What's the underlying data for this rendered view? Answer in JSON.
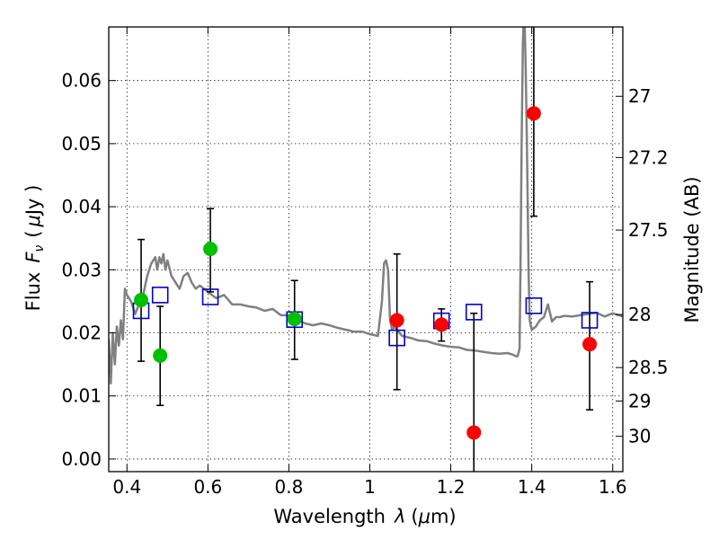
{
  "chart_data": {
    "type": "scatter",
    "title": "",
    "xlabel_prefix": "Wavelength",
    "xlabel_symbol": "λ",
    "xlabel_units_open": "(",
    "xlabel_units_mu": "μ",
    "xlabel_units_rest": "m)",
    "ylabel_prefix": "Flux",
    "ylabel_symbol": "F",
    "ylabel_subscript": "ν",
    "ylabel_units_open": "(",
    "ylabel_units_mu": "μ",
    "ylabel_units_rest": "Jy )",
    "y2label": "Magnitude (AB)",
    "xlim": [
      0.355,
      1.625
    ],
    "ylim": [
      -0.002,
      0.0685
    ],
    "xticks": [
      0.4,
      0.6,
      0.8,
      1.0,
      1.2,
      1.4,
      1.6
    ],
    "xtick_labels": [
      "0.4",
      "0.6",
      "0.8",
      "1",
      "1.2",
      "1.4",
      "1.6"
    ],
    "yticks": [
      0.0,
      0.01,
      0.02,
      0.03,
      0.04,
      0.05,
      0.06
    ],
    "ytick_labels": [
      "0.00",
      "0.01",
      "0.02",
      "0.03",
      "0.04",
      "0.05",
      "0.06"
    ],
    "y2ticks": [
      {
        "label": "27",
        "flux": 0.0575
      },
      {
        "label": "27.2",
        "flux": 0.0478
      },
      {
        "label": "27.5",
        "flux": 0.0363
      },
      {
        "label": "28",
        "flux": 0.0229
      },
      {
        "label": "28.5",
        "flux": 0.0145
      },
      {
        "label": "29",
        "flux": 0.0092
      },
      {
        "label": "30",
        "flux": 0.0036
      }
    ],
    "grid": true,
    "colors": {
      "green": "#00c000",
      "red": "#ff0000",
      "blue": "#0000cc",
      "template": "#808080",
      "errorbar": "#000000"
    },
    "series": [
      {
        "name": "green points",
        "marker": "circle",
        "color": "#00c000",
        "points": [
          {
            "x": 0.435,
            "y": 0.0252,
            "ylo": 0.0155,
            "yhi": 0.0348
          },
          {
            "x": 0.482,
            "y": 0.0164,
            "ylo": 0.0085,
            "yhi": 0.0242
          },
          {
            "x": 0.606,
            "y": 0.0333,
            "ylo": 0.0265,
            "yhi": 0.0397
          },
          {
            "x": 0.814,
            "y": 0.0222,
            "ylo": 0.0158,
            "yhi": 0.0283
          }
        ]
      },
      {
        "name": "red points",
        "marker": "circle",
        "color": "#ff0000",
        "points": [
          {
            "x": 1.067,
            "y": 0.022,
            "ylo": 0.011,
            "yhi": 0.0325
          },
          {
            "x": 1.177,
            "y": 0.0213,
            "ylo": 0.0187,
            "yhi": 0.0238
          },
          {
            "x": 1.257,
            "y": 0.0042,
            "ylo": -0.0025,
            "yhi": 0.0231
          },
          {
            "x": 1.405,
            "y": 0.0548,
            "ylo": 0.0385,
            "yhi": 0.071
          },
          {
            "x": 1.543,
            "y": 0.0182,
            "ylo": 0.0078,
            "yhi": 0.0281
          }
        ]
      },
      {
        "name": "model photometry",
        "marker": "open-square",
        "color": "#0000cc",
        "points": [
          {
            "x": 0.435,
            "y": 0.0235
          },
          {
            "x": 0.482,
            "y": 0.026
          },
          {
            "x": 0.606,
            "y": 0.0257
          },
          {
            "x": 0.814,
            "y": 0.0221
          },
          {
            "x": 1.067,
            "y": 0.0192
          },
          {
            "x": 1.177,
            "y": 0.0219
          },
          {
            "x": 1.257,
            "y": 0.0233
          },
          {
            "x": 1.405,
            "y": 0.0243
          },
          {
            "x": 1.543,
            "y": 0.022
          }
        ]
      }
    ],
    "template_spectrum": {
      "name": "SED template",
      "color": "#808080",
      "x": [
        0.355,
        0.36,
        0.365,
        0.37,
        0.375,
        0.38,
        0.385,
        0.39,
        0.395,
        0.4,
        0.41,
        0.42,
        0.43,
        0.44,
        0.45,
        0.46,
        0.47,
        0.475,
        0.48,
        0.485,
        0.49,
        0.495,
        0.5,
        0.51,
        0.52,
        0.53,
        0.54,
        0.55,
        0.56,
        0.57,
        0.58,
        0.6,
        0.62,
        0.64,
        0.66,
        0.68,
        0.7,
        0.72,
        0.74,
        0.76,
        0.78,
        0.8,
        0.82,
        0.84,
        0.86,
        0.88,
        0.9,
        0.92,
        0.94,
        0.96,
        0.98,
        1.0,
        1.02,
        1.03,
        1.035,
        1.04,
        1.045,
        1.05,
        1.055,
        1.06,
        1.08,
        1.1,
        1.12,
        1.14,
        1.16,
        1.18,
        1.2,
        1.22,
        1.24,
        1.26,
        1.28,
        1.3,
        1.32,
        1.34,
        1.355,
        1.36,
        1.365,
        1.37,
        1.372,
        1.375,
        1.378,
        1.38,
        1.382,
        1.385,
        1.388,
        1.39,
        1.392,
        1.395,
        1.398,
        1.4,
        1.41,
        1.42,
        1.43,
        1.44,
        1.45,
        1.46,
        1.47,
        1.48,
        1.5,
        1.52,
        1.54,
        1.56,
        1.58,
        1.6,
        1.625
      ],
      "y": [
        0.019,
        0.012,
        0.02,
        0.015,
        0.021,
        0.018,
        0.022,
        0.019,
        0.027,
        0.026,
        0.025,
        0.023,
        0.0245,
        0.026,
        0.029,
        0.031,
        0.032,
        0.03,
        0.032,
        0.031,
        0.0325,
        0.03,
        0.0315,
        0.029,
        0.028,
        0.027,
        0.029,
        0.0295,
        0.028,
        0.027,
        0.0275,
        0.0265,
        0.0255,
        0.026,
        0.0245,
        0.0245,
        0.0242,
        0.024,
        0.0235,
        0.0238,
        0.0228,
        0.0228,
        0.022,
        0.0215,
        0.0212,
        0.0215,
        0.0212,
        0.0208,
        0.0205,
        0.0202,
        0.0202,
        0.0198,
        0.0195,
        0.025,
        0.031,
        0.0315,
        0.03,
        0.022,
        0.0205,
        0.021,
        0.0195,
        0.0192,
        0.0188,
        0.0187,
        0.0183,
        0.018,
        0.0178,
        0.0177,
        0.0173,
        0.0172,
        0.017,
        0.0168,
        0.0167,
        0.0168,
        0.0165,
        0.0163,
        0.0163,
        0.0175,
        0.03,
        0.05,
        0.066,
        0.07,
        0.07,
        0.062,
        0.05,
        0.04,
        0.03,
        0.022,
        0.021,
        0.0205,
        0.021,
        0.022,
        0.0225,
        0.0245,
        0.0218,
        0.0225,
        0.0225,
        0.0227,
        0.0226,
        0.0228,
        0.023,
        0.0232,
        0.0226,
        0.0231,
        0.0226
      ]
    }
  }
}
